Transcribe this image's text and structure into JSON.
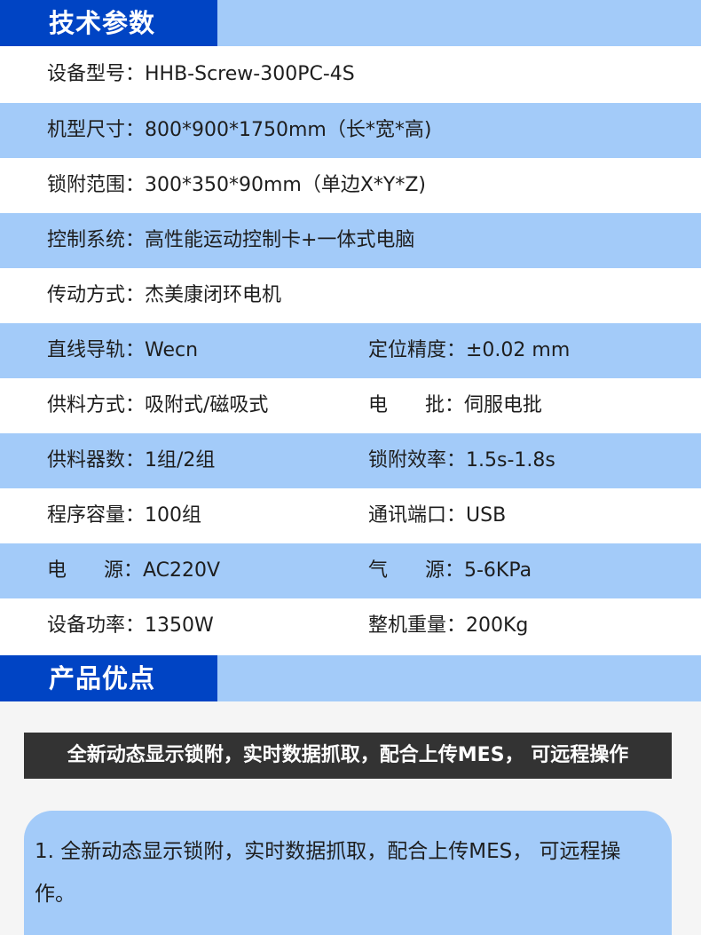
{
  "section1": {
    "title": "技术参数"
  },
  "specs": [
    {
      "l1": "设备型号：HHB-Screw-300PC-4S",
      "l2": ""
    },
    {
      "l1": "机型尺寸：800*900*1750mm（长*宽*高)",
      "l2": ""
    },
    {
      "l1": "锁附范围：300*350*90mm（单边X*Y*Z)",
      "l2": ""
    },
    {
      "l1": "控制系统：高性能运动控制卡+一体式电脑",
      "l2": ""
    },
    {
      "l1": "传动方式：杰美康闭环电机",
      "l2": ""
    },
    {
      "l1": "直线导轨：Wecn",
      "l2": "定位精度：±0.02 mm"
    },
    {
      "l1": "供料方式：吸附式/磁吸式",
      "l2": "电      批：伺服电批"
    },
    {
      "l1": "供料器数：1组/2组",
      "l2": "锁附效率：1.5s-1.8s"
    },
    {
      "l1": "程序容量：100组",
      "l2": "通讯端口：USB"
    },
    {
      "l1": "电      源：AC220V",
      "l2": "气      源：5-6KPa"
    },
    {
      "l1": "设备功率：1350W",
      "l2": "整机重量：200Kg"
    }
  ],
  "section2": {
    "title": "产品优点",
    "banner": "全新动态显示锁附，实时数据抓取，配合上传MES， 可远程操作",
    "card_text": "1. 全新动态显示锁附，实时数据抓取，配合上传MES， 可远程操作。"
  },
  "colors": {
    "brand_blue": "#0044c4",
    "light_blue": "#a3cbf9",
    "banner_dark": "#333333"
  }
}
